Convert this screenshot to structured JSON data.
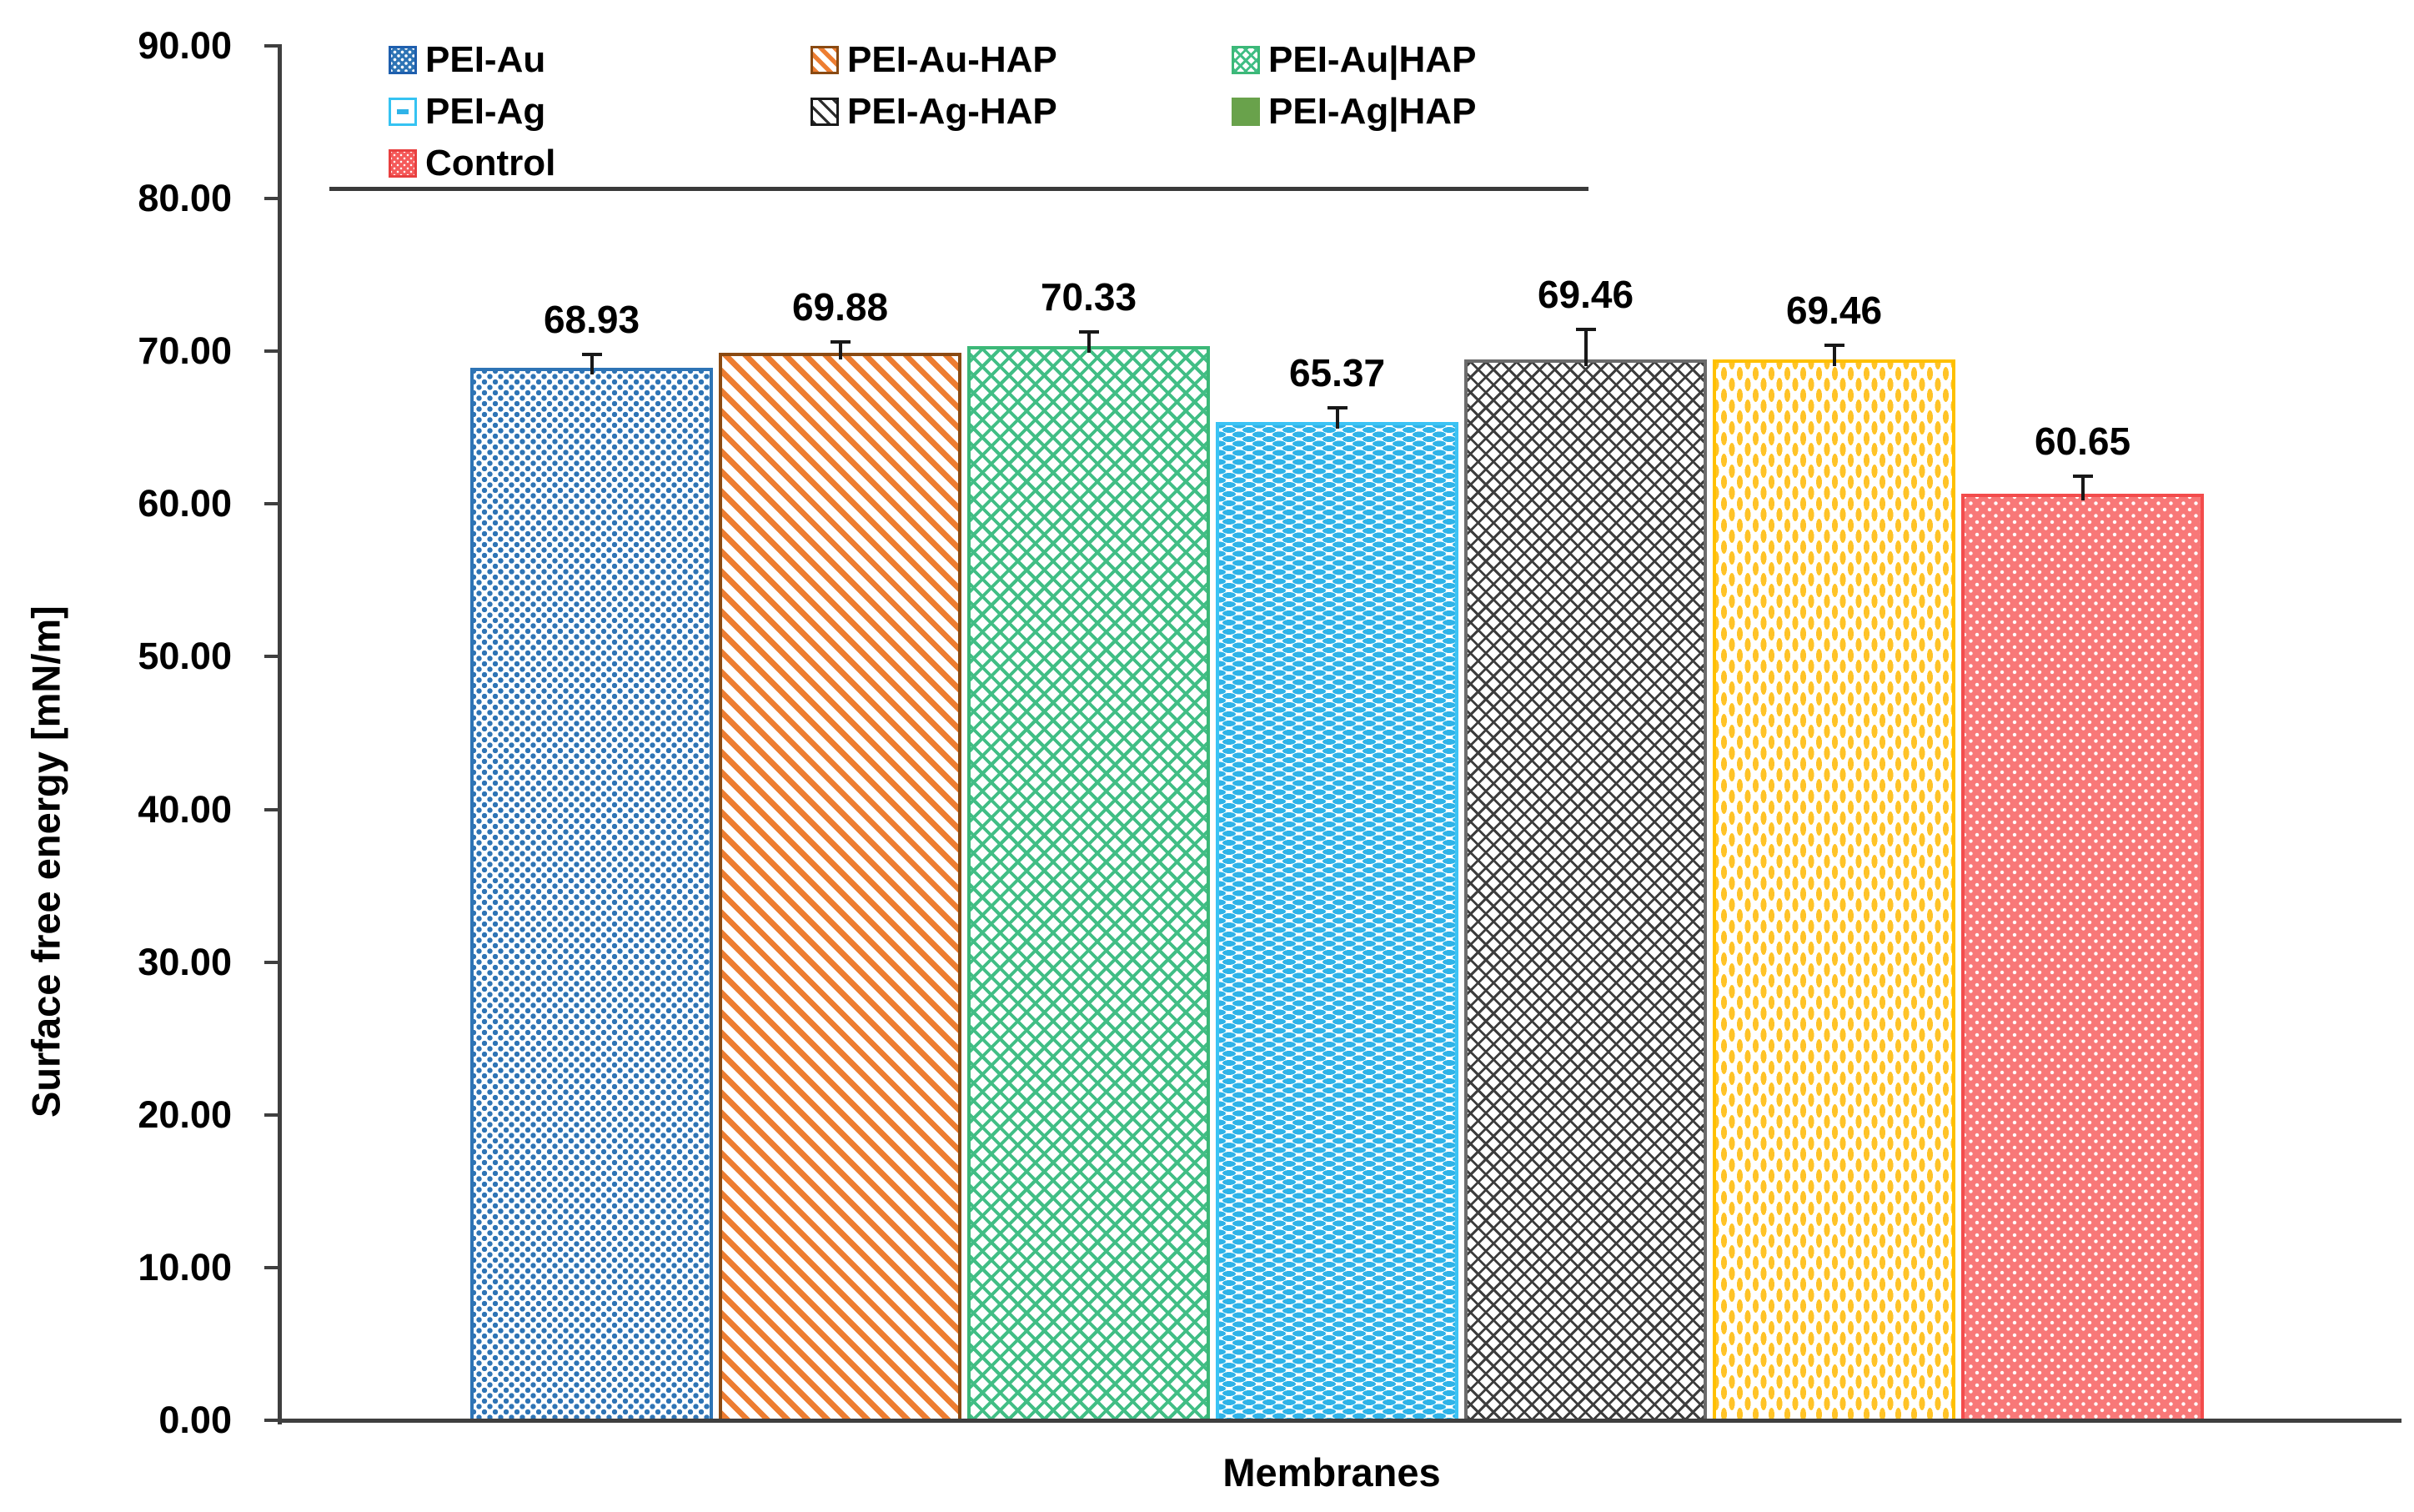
{
  "chart_data": {
    "type": "bar",
    "title": "",
    "xlabel": "Membranes",
    "ylabel": "Surface free energy [mN/m]",
    "ylim": [
      0,
      90
    ],
    "ytick_step": 10,
    "ytick_labels": [
      "0.00",
      "10.00",
      "20.00",
      "30.00",
      "40.00",
      "50.00",
      "60.00",
      "70.00",
      "80.00",
      "90.00"
    ],
    "grid": false,
    "legend_position": "top-left",
    "categories": [
      "PEI-Au",
      "PEI-Au-HAP",
      "PEI-Au|HAP",
      "PEI-Ag",
      "PEI-Ag-HAP",
      "PEI-Ag|HAP",
      "Control"
    ],
    "values": [
      68.93,
      69.88,
      70.33,
      65.37,
      69.46,
      69.46,
      60.65
    ],
    "value_labels": [
      "68.93",
      "69.88",
      "70.33",
      "65.37",
      "69.46",
      "69.46",
      "60.65"
    ],
    "errors": [
      0.8,
      0.7,
      0.9,
      0.9,
      1.9,
      0.9,
      1.1
    ],
    "patterns": [
      "dots-blue",
      "diag-orange",
      "cross-green",
      "hdash-cyan",
      "hatch-dark",
      "vdash-yellow",
      "dotgrid-red"
    ],
    "colors": {
      "blue": "#2E74B5",
      "orange": "#ED7D31",
      "orange_border": "#8a4a12",
      "green": "#41BE85",
      "cyan": "#2FB3E8",
      "dark": "#3d3d3d",
      "yellow": "#FFC327",
      "yellow_border": "#FFC000",
      "red_fill": "#F87878",
      "solid_green_swatch": "#69A24B",
      "axis": "#3f3f3f"
    }
  },
  "legend": {
    "items": [
      {
        "label": "PEI-Au",
        "swatch": "pei-au",
        "col": 0,
        "row": 0
      },
      {
        "label": "PEI-Au-HAP",
        "swatch": "pei-au-hap",
        "col": 1,
        "row": 0
      },
      {
        "label": "PEI-Au|HAP",
        "swatch": "pei-au-bar-hap",
        "col": 2,
        "row": 0
      },
      {
        "label": "PEI-Ag",
        "swatch": "pei-ag",
        "col": 0,
        "row": 1
      },
      {
        "label": "PEI-Ag-HAP",
        "swatch": "pei-ag-hap",
        "col": 1,
        "row": 1
      },
      {
        "label": "PEI-Ag|HAP",
        "swatch": "pei-ag-bar-hap",
        "col": 2,
        "row": 1
      },
      {
        "label": "Control",
        "swatch": "control",
        "col": 0,
        "row": 2
      }
    ],
    "underline": true
  }
}
